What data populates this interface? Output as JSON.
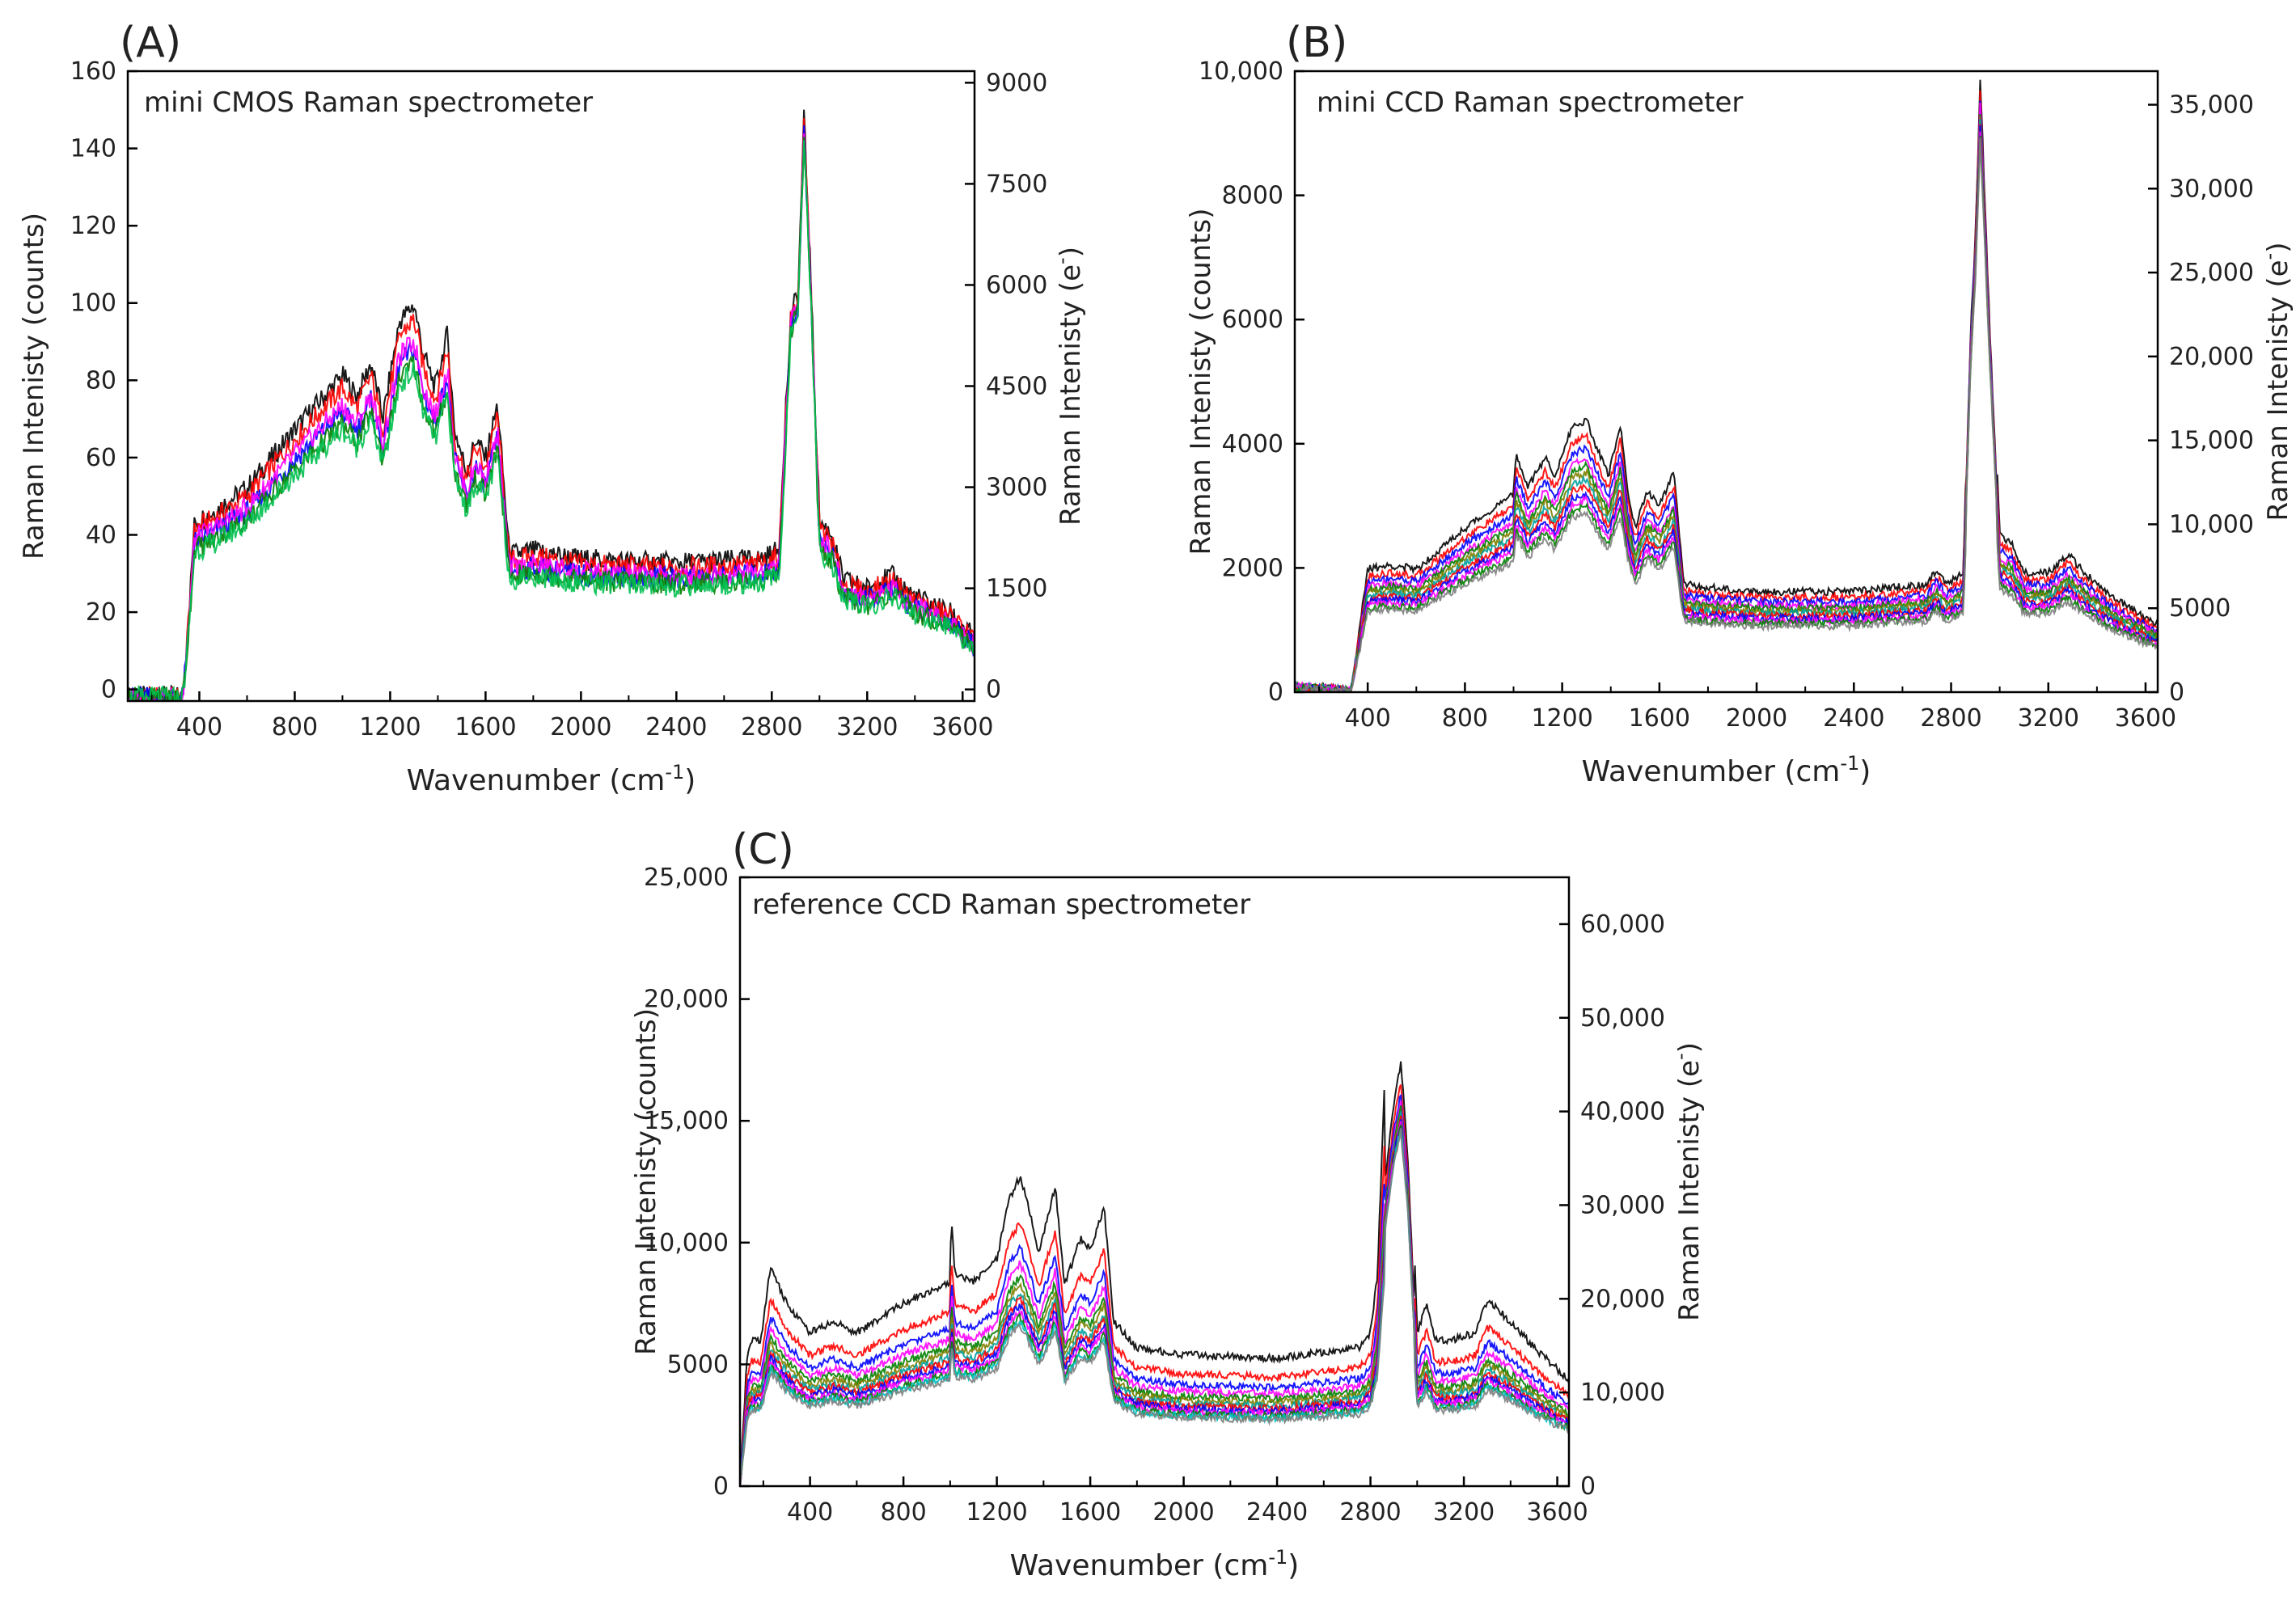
{
  "chart_data": [
    {
      "type": "line",
      "panel_label": "(A)",
      "title": "mini CMOS Raman spectrometer",
      "xlabel": "Wavenumber (cm-1)",
      "xlabel_main": "Wavenumber (cm",
      "xlabel_sup": "-1",
      "xlabel_end": ")",
      "ylabel": "Raman Intenisty (counts)",
      "y2label": "Raman Intenisty (e-)",
      "y2label_main": "Raman Intenisty (e",
      "y2label_sup": "-",
      "y2label_end": ")",
      "xlim": [
        100,
        3650
      ],
      "ylim": [
        -3,
        160
      ],
      "y2lim": [
        -172,
        9172
      ],
      "x_ticks": [
        "400",
        "800",
        "1200",
        "1600",
        "2000",
        "2400",
        "2800",
        "3200",
        "3600"
      ],
      "y_ticks": [
        "0",
        "20",
        "40",
        "60",
        "80",
        "100",
        "120",
        "140",
        "160"
      ],
      "y2_ticks": [
        "0",
        "1500",
        "3000",
        "4500",
        "6000",
        "7500",
        "9000"
      ],
      "series_colors": [
        "#000000",
        "#ff0000",
        "#0000ff",
        "#ff00ff",
        "#008000",
        "#00c050"
      ],
      "series_offsets": [
        1.08,
        1.04,
        0.96,
        0.98,
        0.92,
        0.9
      ],
      "profile_x": [
        100,
        330,
        345,
        380,
        450,
        600,
        800,
        1000,
        1060,
        1120,
        1170,
        1240,
        1300,
        1340,
        1390,
        1440,
        1470,
        1520,
        1560,
        1600,
        1650,
        1700,
        1800,
        2000,
        2400,
        2750,
        2830,
        2880,
        2910,
        2935,
        2960,
        3000,
        3050,
        3100,
        3200,
        3300,
        3400,
        3550,
        3650
      ],
      "profile_y": [
        -2,
        -2,
        8,
        40,
        42,
        48,
        62,
        75,
        70,
        78,
        65,
        88,
        92,
        80,
        72,
        85,
        62,
        52,
        60,
        55,
        68,
        32,
        33,
        31,
        30,
        31,
        33,
        95,
        100,
        145,
        110,
        40,
        37,
        26,
        24,
        27,
        22,
        18,
        12
      ]
    },
    {
      "type": "line",
      "panel_label": "(B)",
      "title": "mini CCD Raman spectrometer",
      "xlabel": "Wavenumber (cm-1)",
      "xlabel_main": "Wavenumber (cm",
      "xlabel_sup": "-1",
      "xlabel_end": ")",
      "ylabel": "Raman Intenisty (counts)",
      "y2label": "Raman Intenisty (e-)",
      "y2label_main": "Raman Intenisty (e",
      "y2label_sup": "-",
      "y2label_end": ")",
      "xlim": [
        100,
        3650
      ],
      "ylim": [
        0,
        10000
      ],
      "y2lim": [
        0,
        37000
      ],
      "x_ticks": [
        "400",
        "800",
        "1200",
        "1600",
        "2000",
        "2400",
        "2800",
        "3200",
        "3600"
      ],
      "y_ticks": [
        "0",
        "2000",
        "4000",
        "6000",
        "8000",
        "10,000"
      ],
      "y2_ticks": [
        "0",
        "5000",
        "10,000",
        "15,000",
        "20,000",
        "25,000",
        "30,000",
        "35,000"
      ],
      "series_colors": [
        "#000000",
        "#ff0000",
        "#0000ff",
        "#ff00ff",
        "#008000",
        "#808000",
        "#00a0a0",
        "#ff0000",
        "#0000ff",
        "#ff00ff",
        "#008000",
        "#808080"
      ],
      "series_offsets": [
        1.2,
        1.13,
        1.08,
        1.03,
        1.0,
        0.97,
        0.94,
        0.91,
        0.88,
        0.85,
        0.82,
        0.79
      ],
      "profile_x": [
        100,
        300,
        330,
        360,
        400,
        500,
        600,
        800,
        1000,
        1010,
        1060,
        1130,
        1170,
        1240,
        1300,
        1340,
        1390,
        1440,
        1470,
        1500,
        1550,
        1600,
        1660,
        1700,
        1800,
        2000,
        2400,
        2700,
        2740,
        2780,
        2850,
        2880,
        2900,
        2920,
        2960,
        3000,
        3050,
        3100,
        3200,
        3280,
        3350,
        3450,
        3650
      ],
      "profile_y": [
        90,
        40,
        0,
        700,
        1650,
        1700,
        1650,
        2200,
        2650,
        3200,
        2750,
        3150,
        2900,
        3550,
        3650,
        3300,
        2900,
        3600,
        2700,
        2200,
        2700,
        2500,
        2950,
        1450,
        1400,
        1350,
        1350,
        1450,
        1650,
        1450,
        1600,
        5500,
        7000,
        9400,
        5500,
        2100,
        2000,
        1600,
        1600,
        1850,
        1600,
        1300,
        900
      ]
    },
    {
      "type": "line",
      "panel_label": "(C)",
      "title": "reference CCD Raman spectrometer",
      "xlabel": "Wavenumber (cm-1)",
      "xlabel_main": "Wavenumber (cm",
      "xlabel_sup": "-1",
      "xlabel_end": ")",
      "ylabel": "Raman Intenisty (counts)",
      "y2label": "Raman Intenisty (e-)",
      "y2label_main": "Raman Intenisty (e",
      "y2label_sup": "-",
      "y2label_end": ")",
      "xlim": [
        100,
        3650
      ],
      "ylim": [
        0,
        25000
      ],
      "y2lim": [
        0,
        65000
      ],
      "x_ticks": [
        "400",
        "800",
        "1200",
        "1600",
        "2000",
        "2400",
        "2800",
        "3200",
        "3600"
      ],
      "y_ticks": [
        "0",
        "5000",
        "10,000",
        "15,000",
        "20,000",
        "25,000"
      ],
      "y2_ticks": [
        "0",
        "10,000",
        "20,000",
        "30,000",
        "40,000",
        "50,000",
        "60,000"
      ],
      "series_colors": [
        "#000000",
        "#ff0000",
        "#0000ff",
        "#ff00ff",
        "#008000",
        "#808000",
        "#00a0a0",
        "#ff0000",
        "#0000ff",
        "#ff00ff",
        "#008000",
        "#00c0c0",
        "#808080"
      ],
      "series_offsets": [
        1.5,
        1.28,
        1.16,
        1.08,
        1.02,
        0.98,
        0.94,
        0.91,
        0.88,
        0.85,
        0.82,
        0.8,
        0.78
      ],
      "profile_x": [
        100,
        130,
        150,
        190,
        230,
        300,
        400,
        500,
        600,
        800,
        1000,
        1005,
        1020,
        1100,
        1200,
        1250,
        1300,
        1340,
        1380,
        1450,
        1490,
        1560,
        1600,
        1660,
        1700,
        1800,
        2000,
        2400,
        2750,
        2800,
        2830,
        2860,
        2900,
        2930,
        2960,
        3000,
        3040,
        3080,
        3150,
        3250,
        3300,
        3400,
        3500,
        3650
      ],
      "profile_y": [
        0,
        3500,
        4000,
        4000,
        6000,
        5000,
        4200,
        4500,
        4200,
        5000,
        5600,
        7500,
        5800,
        5600,
        6200,
        7800,
        8500,
        7500,
        6400,
        8200,
        5500,
        6800,
        6500,
        7600,
        4500,
        3800,
        3600,
        3500,
        3800,
        4200,
        5800,
        11000,
        14000,
        15500,
        12000,
        4200,
        5000,
        4000,
        4000,
        4200,
        5100,
        4500,
        3800,
        2900
      ]
    }
  ]
}
